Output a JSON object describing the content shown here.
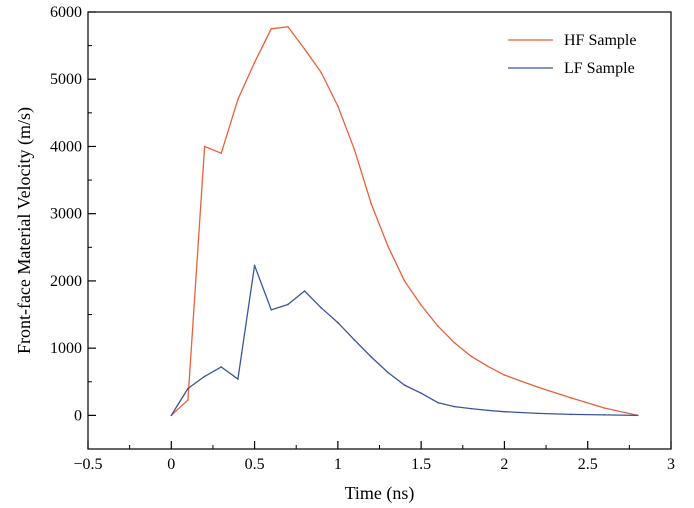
{
  "chart_data": {
    "type": "line",
    "title": "",
    "xlabel": "Time (ns)",
    "ylabel": "Front-face Material Velocity (m/s)",
    "xlim": [
      -0.5,
      3
    ],
    "ylim": [
      -500,
      6000
    ],
    "x_ticks": [
      -0.5,
      0,
      0.5,
      1,
      1.5,
      2,
      2.5,
      3
    ],
    "x_tick_labels": [
      "−0.5",
      "0",
      "0.5",
      "1",
      "1.5",
      "2",
      "2.5",
      "3"
    ],
    "y_ticks": [
      0,
      1000,
      2000,
      3000,
      4000,
      5000,
      6000
    ],
    "y_tick_labels": [
      "0",
      "1000",
      "2000",
      "3000",
      "4000",
      "5000",
      "6000"
    ],
    "grid": false,
    "legend_position": "top-right",
    "series": [
      {
        "name": "HF Sample",
        "color": "#e8603c",
        "x": [
          0,
          0.1,
          0.2,
          0.3,
          0.4,
          0.5,
          0.6,
          0.7,
          0.8,
          0.9,
          1.0,
          1.1,
          1.2,
          1.3,
          1.4,
          1.5,
          1.6,
          1.7,
          1.8,
          1.9,
          2.0,
          2.2,
          2.4,
          2.6,
          2.8
        ],
        "y": [
          0,
          230,
          4000,
          3900,
          4700,
          5250,
          5750,
          5780,
          5450,
          5100,
          4600,
          3950,
          3150,
          2520,
          2000,
          1640,
          1330,
          1080,
          880,
          730,
          600,
          420,
          260,
          110,
          0
        ]
      },
      {
        "name": "LF Sample",
        "color": "#3a559f",
        "x": [
          0,
          0.1,
          0.2,
          0.3,
          0.4,
          0.5,
          0.6,
          0.7,
          0.8,
          0.9,
          1.0,
          1.1,
          1.2,
          1.3,
          1.4,
          1.5,
          1.6,
          1.7,
          1.8,
          1.9,
          2.0,
          2.2,
          2.4,
          2.6,
          2.8
        ],
        "y": [
          0,
          400,
          580,
          720,
          540,
          2230,
          1570,
          1650,
          1850,
          1600,
          1380,
          1120,
          870,
          640,
          450,
          330,
          190,
          130,
          100,
          75,
          55,
          30,
          15,
          8,
          0
        ]
      }
    ]
  }
}
